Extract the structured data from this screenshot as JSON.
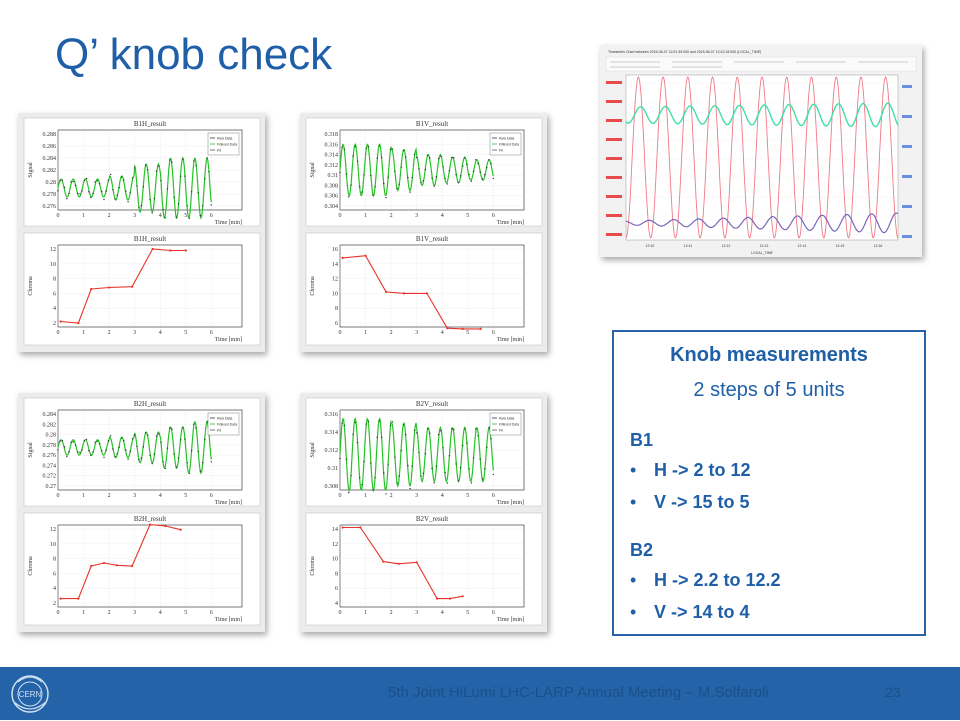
{
  "slide": {
    "title": "Q’ knob check",
    "footer": "5th Joint HiLumi LHC-LARP Annual Meeting – M.Solfaroli",
    "page_number": "23",
    "logo_text": "CERN"
  },
  "legend": [
    "Raw Data",
    "Filtered Data",
    "Fit"
  ],
  "plots": [
    {
      "id": "B1H",
      "signal_title": "B1H_result",
      "chroma_title": "B1H_result",
      "signal_ylabel": "Signal",
      "chroma_ylabel": "Chroma",
      "xlabel": "Time [min]",
      "signal_yticks": [
        "0.288",
        "0.286",
        "0.284",
        "0.282",
        "0.28",
        "0.278",
        "0.276"
      ],
      "chroma_yticks": [
        "12",
        "10",
        "8",
        "6",
        "4",
        "2"
      ],
      "xticks": [
        "0",
        "1",
        "2",
        "3",
        "4",
        "5",
        "6"
      ],
      "chroma_points": [
        [
          0.1,
          2.2
        ],
        [
          0.8,
          2.0
        ],
        [
          1.3,
          6.6
        ],
        [
          2.0,
          6.8
        ],
        [
          2.9,
          6.9
        ],
        [
          3.7,
          12.0
        ],
        [
          4.4,
          11.8
        ],
        [
          5.0,
          11.8
        ]
      ],
      "signal_amp": [
        0.0015,
        0.0015,
        0.002,
        0.004,
        0.005,
        0.005,
        0.004
      ],
      "signal_center": 0.279
    },
    {
      "id": "B1V",
      "signal_title": "B1V_result",
      "chroma_title": "B1V_result",
      "signal_ylabel": "Signal",
      "chroma_ylabel": "Chroma",
      "xlabel": "Time [min]",
      "signal_yticks": [
        "0.318",
        "0.316",
        "0.314",
        "0.312",
        "0.31",
        "0.308",
        "0.306",
        "0.304"
      ],
      "chroma_yticks": [
        "16",
        "14",
        "12",
        "10",
        "8",
        "6"
      ],
      "xticks": [
        "0",
        "1",
        "2",
        "3",
        "4",
        "5",
        "6"
      ],
      "chroma_points": [
        [
          0.1,
          14.8
        ],
        [
          1.0,
          15.1
        ],
        [
          1.8,
          10.2
        ],
        [
          2.5,
          10.0
        ],
        [
          3.4,
          10.0
        ],
        [
          4.2,
          5.3
        ],
        [
          4.8,
          5.2
        ],
        [
          5.5,
          5.2
        ]
      ],
      "signal_amp": [
        0.005,
        0.005,
        0.004,
        0.003,
        0.0025,
        0.002,
        0.002
      ],
      "signal_center": 0.311
    },
    {
      "id": "B2H",
      "signal_title": "B2H_result",
      "chroma_title": "B2H_result",
      "signal_ylabel": "Signal",
      "chroma_ylabel": "Chroma",
      "xlabel": "Time [min]",
      "signal_yticks": [
        "0.284",
        "0.282",
        "0.28",
        "0.278",
        "0.276",
        "0.274",
        "0.272",
        "0.27"
      ],
      "chroma_yticks": [
        "12",
        "10",
        "8",
        "6",
        "4",
        "2"
      ],
      "xticks": [
        "0",
        "1",
        "2",
        "3",
        "4",
        "5",
        "6"
      ],
      "chroma_points": [
        [
          0.1,
          2.6
        ],
        [
          0.8,
          2.6
        ],
        [
          1.3,
          7.0
        ],
        [
          1.8,
          7.4
        ],
        [
          2.3,
          7.1
        ],
        [
          2.9,
          7.0
        ],
        [
          3.6,
          12.6
        ],
        [
          4.2,
          12.4
        ],
        [
          4.8,
          11.9
        ]
      ],
      "signal_amp": [
        0.0015,
        0.0015,
        0.002,
        0.003,
        0.004,
        0.005,
        0.004
      ],
      "signal_center": 0.2775
    },
    {
      "id": "B2V",
      "signal_title": "B2V_result",
      "chroma_title": "B2V_result",
      "signal_ylabel": "Signal",
      "chroma_ylabel": "Chroma",
      "xlabel": "Time [min]",
      "signal_yticks": [
        "0.316",
        "0.314",
        "0.312",
        "0.31",
        "0.308"
      ],
      "chroma_yticks": [
        "14",
        "12",
        "10",
        "8",
        "6",
        "4"
      ],
      "xticks": [
        "0",
        "1",
        "2",
        "3",
        "4",
        "5",
        "6"
      ],
      "chroma_points": [
        [
          0.1,
          14.2
        ],
        [
          0.8,
          14.2
        ],
        [
          1.7,
          9.6
        ],
        [
          2.3,
          9.3
        ],
        [
          3.0,
          9.5
        ],
        [
          3.8,
          4.6
        ],
        [
          4.3,
          4.6
        ],
        [
          4.8,
          4.9
        ]
      ],
      "signal_amp": [
        0.004,
        0.004,
        0.0035,
        0.003,
        0.003,
        0.003,
        0.003
      ],
      "signal_center": 0.3115
    }
  ],
  "timeseries": {
    "title": "Timeseries Chart between 2015-06-07 12:01:39.000 and 2015-06-07 12:42:18.000 (LOCAL_TIME)",
    "xlabel": "LOCAL_TIME",
    "xticks": [
      "12:10",
      "12:11",
      "12:12",
      "12:13",
      "12:14",
      "12:15",
      "12:16"
    ]
  },
  "info": {
    "title": "Knob measurements",
    "subtitle": "2 steps of 5 units",
    "groups": [
      {
        "name": "B1",
        "items": [
          "H -> 2 to 12",
          "V -> 15 to 5"
        ]
      },
      {
        "name": "B2",
        "items": [
          "H -> 2.2 to 12.2",
          "V -> 14 to 4"
        ]
      }
    ],
    "bullet": "•"
  },
  "colors": {
    "accent": "#1f5fa8",
    "footer": "#2563a8",
    "chroma": "#e8332a",
    "fit": "#27c227",
    "raw": "#333333",
    "ts_pink": "#f07a86",
    "ts_teal": "#3fe0a8",
    "ts_purple": "#7a66b8"
  }
}
